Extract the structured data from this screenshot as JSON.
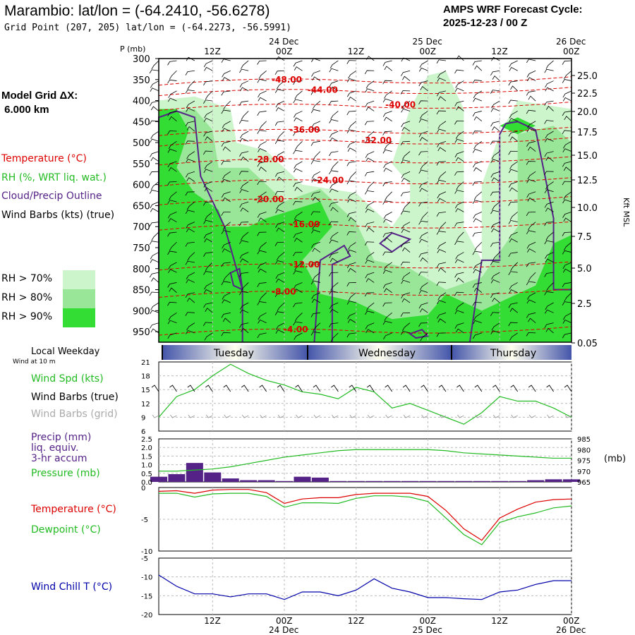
{
  "header": {
    "title": "Marambio:  lat/lon = (-64.2410, -56.6278)",
    "subtitle": "Grid Point (207, 205) lat/lon = (-64.2273, -56.5991)",
    "cycle_line1": "AMPS WRF Forecast Cycle:",
    "cycle_line2": "2025-12-23 / 00  Z",
    "grid_line1": "Model Grid ΔX:",
    "grid_line2": " 6.000 km"
  },
  "legend": {
    "temperature": "Temperature (°C)",
    "rh": "RH (%, WRT liq. wat.)",
    "cloud": "Cloud/Precip Outline",
    "wind": "Wind Barbs (kts) (true)",
    "rh70": "RH > 70%",
    "rh80": "RH > 80%",
    "rh90": "RH > 90%",
    "rh_colors": [
      "#ccf5cc",
      "#99e699",
      "#33dd33"
    ],
    "local_weekday": "Local Weekday",
    "wind_at": "Wind at 10 m",
    "wind_spd": "Wind Spd (kts)",
    "wind_barbs_true": "Wind Barbs (true)",
    "wind_barbs_grid": "Wind Barbs (grid)",
    "precip1": "Precip (mm)",
    "precip2": "liq. equiv.",
    "precip3": "3-hr accum",
    "pressure": "Pressure (mb)",
    "pressure_unit": "(mb)",
    "temp2": "Temperature (°C)",
    "dewpoint": "Dewpoint (°C)",
    "windchill": "Wind Chill T (°C)"
  },
  "colors": {
    "temp": "#dd0000",
    "green": "#22bb22",
    "purple": "#552288",
    "blue": "#0000aa",
    "precip": "#552288"
  },
  "time_axis": {
    "top_ticks": [
      "12Z",
      "00Z",
      "12Z",
      "00Z",
      "12Z",
      "00Z"
    ],
    "top_dates": [
      "24 Dec",
      "25 Dec",
      "26 Dec"
    ],
    "bottom_ticks": [
      "12Z",
      "00Z",
      "12Z",
      "00Z",
      "12Z",
      "00Z"
    ],
    "bottom_dates": [
      "24 Dec",
      "25 Dec",
      "26 Dec"
    ],
    "weekdays": [
      "Tuesday",
      "Wednesday",
      "Thursday"
    ]
  },
  "chart_data": [
    {
      "type": "heatmap",
      "panel": "cross-section",
      "ylabel": "P (mb)",
      "pressure_levels": [
        300,
        350,
        400,
        450,
        500,
        550,
        600,
        650,
        700,
        750,
        800,
        850,
        900,
        950
      ],
      "height_labels": [
        "25.0",
        "22.5",
        "20.0",
        "17.5",
        "15.0",
        "12.5",
        "10.0",
        "7.5",
        "5.0",
        "2.5",
        "0.05"
      ],
      "height_unit": "Kft MSL",
      "x_range_hours": [
        3,
        72
      ],
      "temperature_contours": [
        {
          "label": "-48.00",
          "hour": 24,
          "p": 350
        },
        {
          "label": "-44.00",
          "hour": 30,
          "p": 375
        },
        {
          "label": "-40.00",
          "hour": 43,
          "p": 410
        },
        {
          "label": "-36.00",
          "hour": 27,
          "p": 470
        },
        {
          "label": "-32.00",
          "hour": 39,
          "p": 495
        },
        {
          "label": "-28.00",
          "hour": 21,
          "p": 540
        },
        {
          "label": "-24.00",
          "hour": 31,
          "p": 590
        },
        {
          "label": "-20.00",
          "hour": 21,
          "p": 635
        },
        {
          "label": "-16.00",
          "hour": 27,
          "p": 695
        },
        {
          "label": "-12.00",
          "hour": 27,
          "p": 790
        },
        {
          "label": "-8.00",
          "hour": 24,
          "p": 855
        },
        {
          "label": "-4.00",
          "hour": 26,
          "p": 945
        }
      ]
    },
    {
      "type": "line",
      "panel": "wind-speed",
      "ylabel": "Wind Spd (kts)",
      "ylim": [
        6,
        21
      ],
      "yticks": [
        "21",
        "18",
        "15",
        "12",
        "9",
        "6"
      ],
      "x": [
        3,
        6,
        9,
        12,
        15,
        18,
        21,
        24,
        27,
        30,
        33,
        36,
        39,
        42,
        45,
        48,
        51,
        54,
        57,
        60,
        63,
        66,
        69,
        72
      ],
      "values": [
        9,
        13.5,
        15,
        18,
        20.5,
        18.5,
        17,
        16,
        14.5,
        14,
        13,
        15.5,
        14.5,
        11,
        12,
        10.5,
        9,
        7.5,
        10,
        13.5,
        12.5,
        12.5,
        11,
        9
      ]
    },
    {
      "type": "bar",
      "panel": "precip-pressure",
      "ylabel": "Precip (mm)",
      "ylim": [
        0,
        2.5
      ],
      "yticks": [
        "2.5",
        "2.0",
        "1.5",
        "1.0",
        "0.5",
        "0.0"
      ],
      "x": [
        3,
        6,
        9,
        12,
        15,
        18,
        21,
        24,
        27,
        30,
        33,
        36,
        39,
        42,
        45,
        48,
        51,
        54,
        57,
        60,
        63,
        66,
        69,
        72
      ],
      "values": [
        0.3,
        0.45,
        1.1,
        0.55,
        0.2,
        0.1,
        0.1,
        0.05,
        0.3,
        0.25,
        0.05,
        0.05,
        0.05,
        0.05,
        0.05,
        0.05,
        0.05,
        0.05,
        0.05,
        0.05,
        0.05,
        0.1,
        0.15,
        0.15
      ],
      "pressure_series": {
        "name": "Pressure (mb)",
        "ylim": [
          965,
          985
        ],
        "yticks": [
          "985",
          "980",
          "975",
          "970",
          "965"
        ],
        "values": [
          970,
          970,
          970.5,
          971,
          972,
          973.5,
          975,
          976.5,
          977.5,
          978.5,
          979.5,
          980,
          980,
          980,
          980,
          980,
          979.5,
          978.5,
          978,
          977.5,
          977,
          976.5,
          976,
          976
        ]
      }
    },
    {
      "type": "line",
      "panel": "temperature-dewpoint",
      "ylim": [
        -10,
        0
      ],
      "yticks": [
        "0",
        "-5",
        "-10"
      ],
      "x": [
        3,
        6,
        9,
        12,
        15,
        18,
        21,
        24,
        27,
        30,
        33,
        36,
        39,
        42,
        45,
        48,
        51,
        54,
        57,
        60,
        63,
        66,
        69,
        72
      ],
      "series": [
        {
          "name": "Temperature (°C)",
          "values": [
            -0.6,
            -0.5,
            -0.9,
            -0.4,
            -0.3,
            -0.3,
            -0.8,
            -2.5,
            -1.8,
            -1.6,
            -1.6,
            -1.1,
            -0.9,
            -0.9,
            -0.9,
            -1.4,
            -3.6,
            -6.5,
            -8.3,
            -4.8,
            -3.4,
            -2.3,
            -1.9,
            -1.8
          ]
        },
        {
          "name": "Dewpoint (°C)",
          "values": [
            -0.9,
            -0.9,
            -1.5,
            -1.0,
            -0.9,
            -0.9,
            -1.4,
            -3.1,
            -2.4,
            -2.4,
            -2.5,
            -1.7,
            -1.3,
            -1.3,
            -1.5,
            -2.2,
            -4.8,
            -7.4,
            -9.0,
            -5.5,
            -4.6,
            -4.0,
            -3.2,
            -2.9
          ]
        }
      ]
    },
    {
      "type": "line",
      "panel": "wind-chill",
      "ylabel": "Wind Chill T (°C)",
      "ylim": [
        -20,
        -5
      ],
      "yticks": [
        "-5",
        "-10",
        "-15",
        "-20"
      ],
      "x": [
        3,
        6,
        9,
        12,
        15,
        18,
        21,
        24,
        27,
        30,
        33,
        36,
        39,
        42,
        45,
        48,
        51,
        54,
        57,
        60,
        63,
        66,
        69,
        72
      ],
      "series": [
        {
          "name": "Wind Chill T (°C)",
          "values": [
            -9.5,
            -12.5,
            -14.5,
            -14.5,
            -15.3,
            -14.5,
            -14.5,
            -16.0,
            -14.0,
            -14.0,
            -15.0,
            -13.5,
            -10.5,
            -13.0,
            -14.0,
            -15.5,
            -15.5,
            -15.8,
            -16.0,
            -14.0,
            -13.5,
            -12.0,
            -11.0,
            -11.0
          ]
        }
      ]
    }
  ]
}
